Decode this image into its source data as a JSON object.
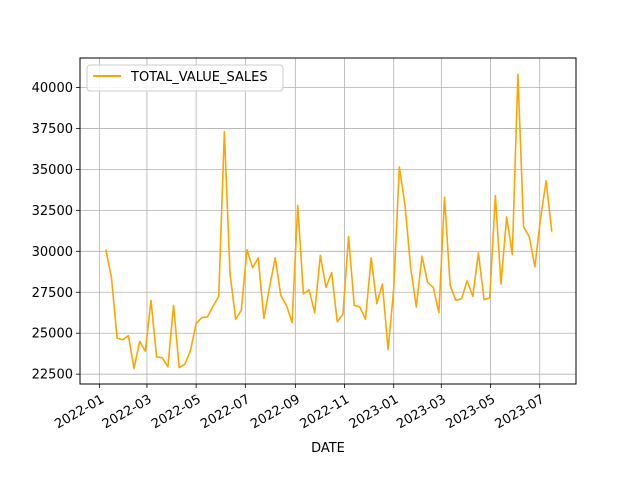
{
  "chart_data": {
    "type": "line",
    "title": "",
    "xlabel": "DATE",
    "ylabel": "",
    "grid": true,
    "legend_position": "upper-left",
    "line_color": "#ffa500",
    "xlim": [
      "2021-12-08",
      "2023-08-15"
    ],
    "ylim": [
      21900,
      41800
    ],
    "x_ticks": [
      "2022-01-01",
      "2022-03-01",
      "2022-05-01",
      "2022-07-01",
      "2022-09-01",
      "2022-11-01",
      "2023-01-01",
      "2023-03-01",
      "2023-05-01",
      "2023-07-01"
    ],
    "x_tick_labels": [
      "2022-01",
      "2022-03",
      "2022-05",
      "2022-07",
      "2022-09",
      "2022-11",
      "2023-01",
      "2023-03",
      "2023-05",
      "2023-07"
    ],
    "y_ticks": [
      22500,
      25000,
      27500,
      30000,
      32500,
      35000,
      37500,
      40000
    ],
    "y_tick_labels": [
      "22500",
      "25000",
      "27500",
      "30000",
      "32500",
      "35000",
      "37500",
      "40000"
    ],
    "series": [
      {
        "name": "TOTAL_VALUE_SALES",
        "x": [
          "2022-01-09",
          "2022-01-16",
          "2022-01-23",
          "2022-01-30",
          "2022-02-06",
          "2022-02-13",
          "2022-02-20",
          "2022-02-27",
          "2022-03-06",
          "2022-03-13",
          "2022-03-20",
          "2022-03-27",
          "2022-04-03",
          "2022-04-10",
          "2022-04-17",
          "2022-04-24",
          "2022-05-01",
          "2022-05-08",
          "2022-05-15",
          "2022-05-22",
          "2022-05-29",
          "2022-06-05",
          "2022-06-12",
          "2022-06-19",
          "2022-06-26",
          "2022-07-03",
          "2022-07-10",
          "2022-07-17",
          "2022-07-24",
          "2022-07-31",
          "2022-08-07",
          "2022-08-14",
          "2022-08-21",
          "2022-08-28",
          "2022-09-04",
          "2022-09-11",
          "2022-09-18",
          "2022-09-25",
          "2022-10-02",
          "2022-10-09",
          "2022-10-16",
          "2022-10-23",
          "2022-10-30",
          "2022-11-06",
          "2022-11-13",
          "2022-11-20",
          "2022-11-27",
          "2022-12-04",
          "2022-12-11",
          "2022-12-18",
          "2022-12-25",
          "2023-01-01",
          "2023-01-08",
          "2023-01-15",
          "2023-01-22",
          "2023-01-29",
          "2023-02-05",
          "2023-02-12",
          "2023-02-19",
          "2023-02-26",
          "2023-03-05",
          "2023-03-12",
          "2023-03-19",
          "2023-03-26",
          "2023-04-02",
          "2023-04-09",
          "2023-04-16",
          "2023-04-23",
          "2023-04-30",
          "2023-05-07",
          "2023-05-14",
          "2023-05-21",
          "2023-05-28",
          "2023-06-04",
          "2023-06-11",
          "2023-06-18",
          "2023-06-25",
          "2023-07-02",
          "2023-07-09",
          "2023-07-16"
        ],
        "values": [
          30100,
          28400,
          24700,
          24600,
          24850,
          22850,
          24500,
          23900,
          27000,
          23550,
          23500,
          22950,
          26700,
          22900,
          23100,
          23950,
          25600,
          25950,
          26000,
          26650,
          27250,
          37300,
          28650,
          25850,
          26400,
          30100,
          29000,
          29600,
          25900,
          27800,
          29600,
          27300,
          26700,
          25650,
          32800,
          27400,
          27650,
          26250,
          29750,
          27800,
          28700,
          25700,
          26150,
          30900,
          26700,
          26600,
          25850,
          29600,
          26800,
          28000,
          24000,
          27700,
          35150,
          32800,
          29000,
          26600,
          29700,
          28100,
          27800,
          26250,
          33300,
          27900,
          27000,
          27100,
          28200,
          27250,
          29900,
          27050,
          27150,
          33400,
          28000,
          32100,
          29800,
          40800,
          31500,
          30900,
          29050,
          32000,
          34300,
          31200
        ]
      }
    ]
  }
}
